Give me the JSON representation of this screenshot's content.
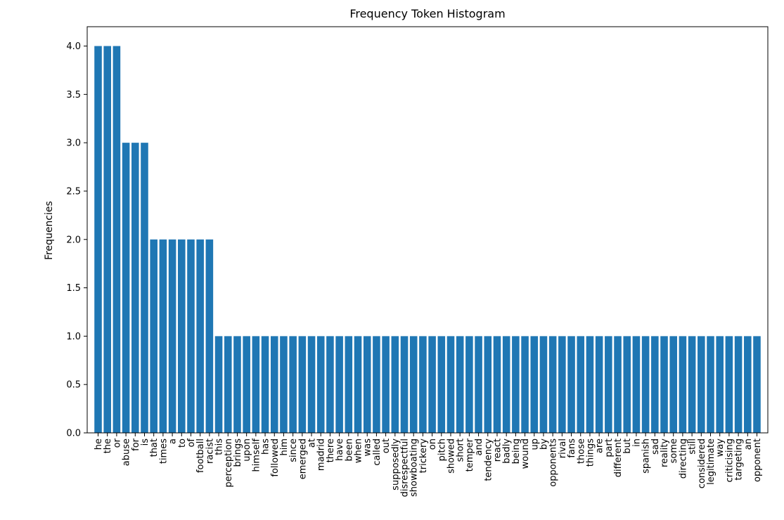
{
  "chart_data": {
    "type": "bar",
    "title": "Frequency Token Histogram",
    "xlabel": "",
    "ylabel": "Frequencies",
    "ylim": [
      0,
      4.2
    ],
    "yticks": [
      0.0,
      0.5,
      1.0,
      1.5,
      2.0,
      2.5,
      3.0,
      3.5,
      4.0
    ],
    "ytick_labels": [
      "0.0",
      "0.5",
      "1.0",
      "1.5",
      "2.0",
      "2.5",
      "3.0",
      "3.5",
      "4.0"
    ],
    "grid": false,
    "bar_color": "#1f77b4",
    "categories": [
      "he",
      "the",
      "or",
      "abuse",
      "for",
      "is",
      "that",
      "times",
      "a",
      "to",
      "of",
      "football",
      "racist",
      "this",
      "perception",
      "brings",
      "upon",
      "himself",
      "has",
      "followed",
      "him",
      "since",
      "emerged",
      "at",
      "madrid",
      "there",
      "have",
      "been",
      "when",
      "was",
      "called",
      "out",
      "supposedly",
      "disrespectful",
      "showboating",
      "trickery",
      "on",
      "pitch",
      "showed",
      "short",
      "temper",
      "and",
      "tendency",
      "react",
      "badly",
      "being",
      "wound",
      "up",
      "by",
      "opponents",
      "rival",
      "fans",
      "those",
      "things",
      "are",
      "part",
      "different",
      "but",
      "in",
      "spanish",
      "sad",
      "reality",
      "some",
      "directing",
      "still",
      "considered",
      "legitimate",
      "way",
      "criticising",
      "targeting",
      "an",
      "opponent"
    ],
    "values": [
      4,
      4,
      4,
      3,
      3,
      3,
      2,
      2,
      2,
      2,
      2,
      2,
      2,
      1,
      1,
      1,
      1,
      1,
      1,
      1,
      1,
      1,
      1,
      1,
      1,
      1,
      1,
      1,
      1,
      1,
      1,
      1,
      1,
      1,
      1,
      1,
      1,
      1,
      1,
      1,
      1,
      1,
      1,
      1,
      1,
      1,
      1,
      1,
      1,
      1,
      1,
      1,
      1,
      1,
      1,
      1,
      1,
      1,
      1,
      1,
      1,
      1,
      1,
      1,
      1,
      1,
      1,
      1,
      1,
      1,
      1,
      1
    ]
  }
}
